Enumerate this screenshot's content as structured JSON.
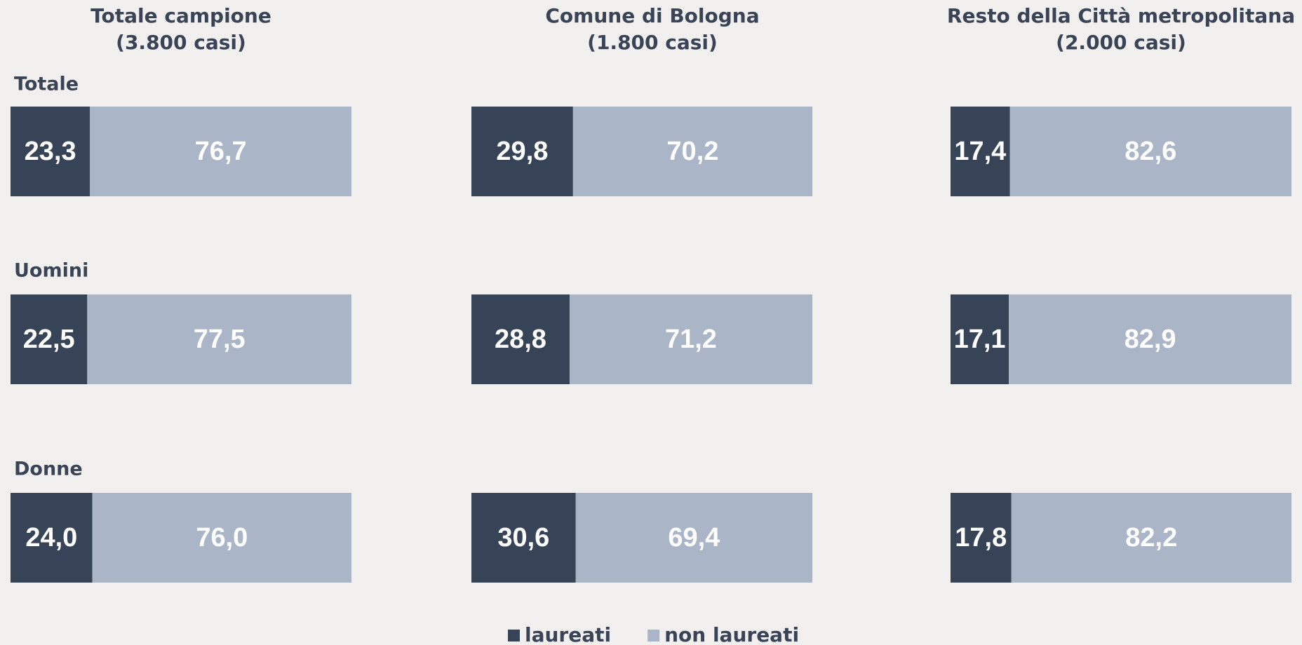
{
  "chart_data": {
    "type": "bar",
    "orientation": "horizontal",
    "stacked": true,
    "xlim": [
      0,
      100
    ],
    "categories": [
      "Totale",
      "Uomini",
      "Donne"
    ],
    "series": [
      {
        "name": "laureati",
        "color": "#374357"
      },
      {
        "name": "non laureati",
        "color": "#aab5c8"
      }
    ],
    "panels": [
      {
        "title": "Totale campione",
        "subtitle": "(3.800 casi)",
        "series": [
          {
            "values": [
              23.3,
              22.5,
              24.0
            ],
            "value_labels": [
              "23,3",
              "22,5",
              "24,0"
            ]
          },
          {
            "values": [
              76.7,
              77.5,
              76.0
            ],
            "value_labels": [
              "76,7",
              "77,5",
              "76,0"
            ]
          }
        ]
      },
      {
        "title": "Comune di Bologna",
        "subtitle": "(1.800 casi)",
        "series": [
          {
            "values": [
              29.8,
              28.8,
              30.6
            ],
            "value_labels": [
              "29,8",
              "28,8",
              "30,6"
            ]
          },
          {
            "values": [
              70.2,
              71.2,
              69.4
            ],
            "value_labels": [
              "70,2",
              "71,2",
              "69,4"
            ]
          }
        ]
      },
      {
        "title": "Resto della Città metropolitana",
        "subtitle": "(2.000 casi)",
        "series": [
          {
            "values": [
              17.4,
              17.1,
              17.8
            ],
            "value_labels": [
              "17,4",
              "17,1",
              "17,8"
            ]
          },
          {
            "values": [
              82.6,
              82.9,
              82.2
            ],
            "value_labels": [
              "82,6",
              "82,9",
              "82,2"
            ]
          }
        ]
      }
    ]
  }
}
